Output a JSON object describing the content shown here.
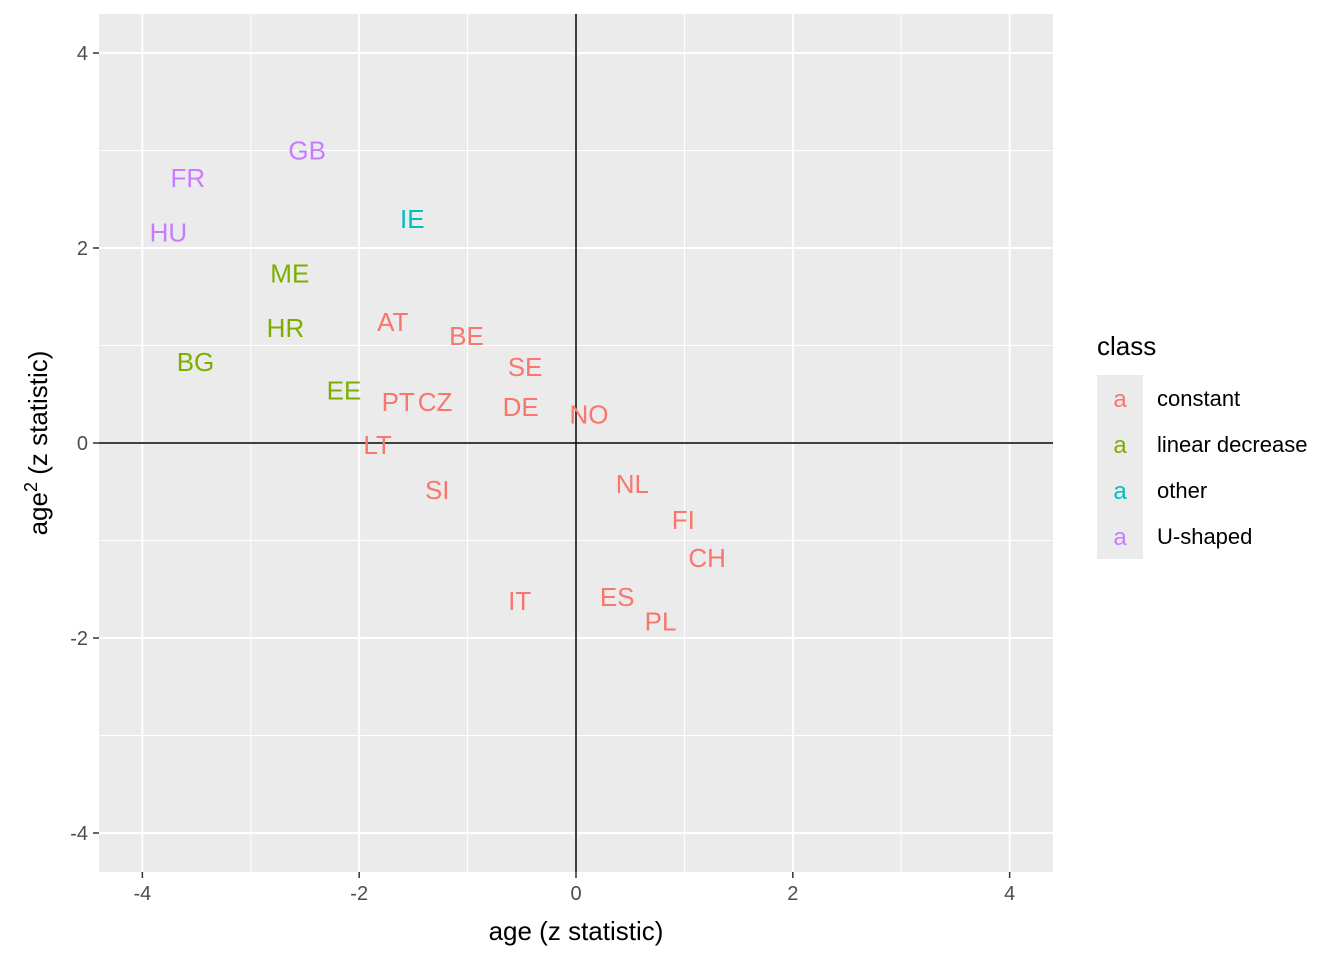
{
  "chart_data": {
    "type": "scatter",
    "xlabel": "age (z statistic)",
    "ylabel_base": "age",
    "ylabel_sup": "2",
    "ylabel_rest": " (z statistic)",
    "xlim": [
      -4.4,
      4.4
    ],
    "ylim": [
      -4.4,
      4.4
    ],
    "x_ticks": [
      -4,
      -2,
      0,
      2,
      4
    ],
    "y_ticks": [
      -4,
      -2,
      0,
      2,
      4
    ],
    "x_tick_labels": [
      "-4",
      "-2",
      "0",
      "2",
      "4"
    ],
    "y_tick_labels": [
      "-4",
      "-2",
      "0",
      "2",
      "4"
    ],
    "grid": true,
    "reference_lines": {
      "x": 0,
      "y": 0
    },
    "legend": {
      "title": "class",
      "position": "right",
      "key_glyph": "a",
      "entries": [
        {
          "name": "constant",
          "color": "#F8766D"
        },
        {
          "name": "linear decrease",
          "color": "#7CAE00"
        },
        {
          "name": "other",
          "color": "#00BFC4"
        },
        {
          "name": "U-shaped",
          "color": "#C77CFF"
        }
      ]
    },
    "points": [
      {
        "label": "GB",
        "x": -2.48,
        "y": 3.0,
        "class": "U-shaped"
      },
      {
        "label": "FR",
        "x": -3.58,
        "y": 2.72,
        "class": "U-shaped"
      },
      {
        "label": "HU",
        "x": -3.76,
        "y": 2.16,
        "class": "U-shaped"
      },
      {
        "label": "IE",
        "x": -1.51,
        "y": 2.3,
        "class": "other"
      },
      {
        "label": "ME",
        "x": -2.64,
        "y": 1.74,
        "class": "linear decrease"
      },
      {
        "label": "HR",
        "x": -2.68,
        "y": 1.18,
        "class": "linear decrease"
      },
      {
        "label": "BG",
        "x": -3.51,
        "y": 0.83,
        "class": "linear decrease"
      },
      {
        "label": "EE",
        "x": -2.14,
        "y": 0.54,
        "class": "linear decrease"
      },
      {
        "label": "AT",
        "x": -1.69,
        "y": 1.24,
        "class": "constant"
      },
      {
        "label": "BE",
        "x": -1.01,
        "y": 1.1,
        "class": "constant"
      },
      {
        "label": "SE",
        "x": -0.47,
        "y": 0.78,
        "class": "constant"
      },
      {
        "label": "PT",
        "x": -1.64,
        "y": 0.42,
        "class": "constant"
      },
      {
        "label": "CZ",
        "x": -1.3,
        "y": 0.42,
        "class": "constant"
      },
      {
        "label": "DE",
        "x": -0.51,
        "y": 0.37,
        "class": "constant"
      },
      {
        "label": "NO",
        "x": 0.12,
        "y": 0.29,
        "class": "constant"
      },
      {
        "label": "LT",
        "x": -1.83,
        "y": -0.02,
        "class": "constant"
      },
      {
        "label": "SI",
        "x": -1.28,
        "y": -0.48,
        "class": "constant"
      },
      {
        "label": "NL",
        "x": 0.52,
        "y": -0.42,
        "class": "constant"
      },
      {
        "label": "FI",
        "x": 0.99,
        "y": -0.79,
        "class": "constant"
      },
      {
        "label": "CH",
        "x": 1.21,
        "y": -1.18,
        "class": "constant"
      },
      {
        "label": "IT",
        "x": -0.52,
        "y": -1.62,
        "class": "constant"
      },
      {
        "label": "ES",
        "x": 0.38,
        "y": -1.58,
        "class": "constant"
      },
      {
        "label": "PL",
        "x": 0.78,
        "y": -1.83,
        "class": "constant"
      }
    ]
  }
}
